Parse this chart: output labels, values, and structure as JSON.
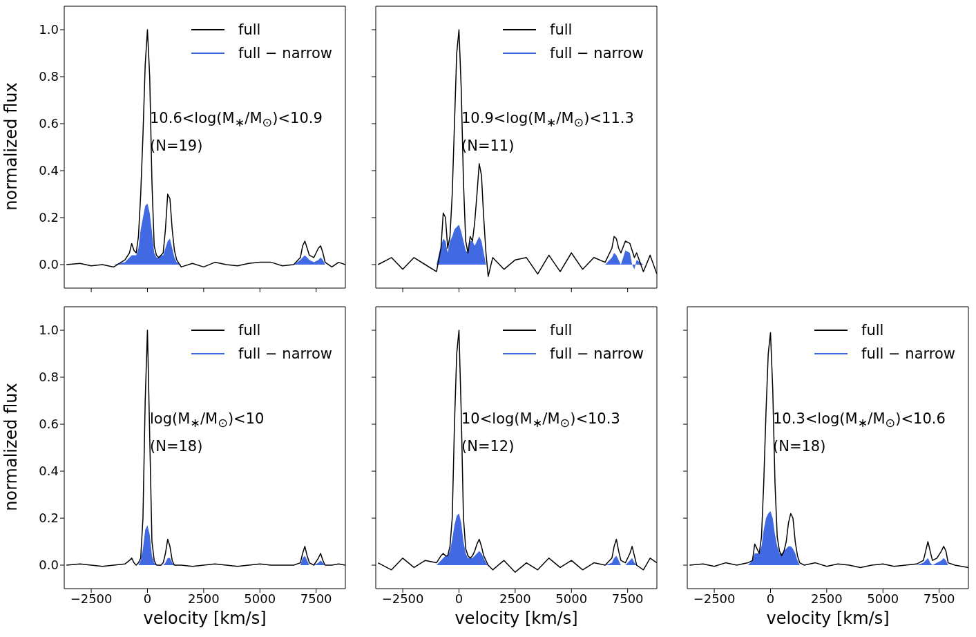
{
  "chart_data": [
    {
      "type": "line",
      "ylabel": "normalized flux",
      "tick_labels": "y",
      "legend": "top right",
      "annotations": [
        "10.6<log(M$_{∗}$/M$_{⊙}$)<10.9",
        "(N=19)"
      ],
      "x": [
        -3600,
        -3000,
        -2500,
        -2000,
        -1500,
        -1000,
        -800,
        -700,
        -600,
        -500,
        -400,
        -300,
        -200,
        -100,
        0,
        100,
        200,
        300,
        400,
        500,
        600,
        700,
        800,
        900,
        1000,
        1100,
        1200,
        1300,
        1500,
        2000,
        2500,
        3000,
        3500,
        4000,
        4500,
        5000,
        5500,
        6000,
        6500,
        6800,
        6900,
        7000,
        7100,
        7200,
        7400,
        7600,
        7700,
        7800,
        7900,
        8200,
        8500,
        8800
      ],
      "xlim": [
        -3700,
        8800
      ],
      "xticks": [
        {
          "value": -2500,
          "label": null
        },
        {
          "value": 0,
          "label": null
        },
        {
          "value": 2500,
          "label": null
        },
        {
          "value": 5000,
          "label": null
        },
        {
          "value": 7500,
          "label": null
        }
      ],
      "ylim": [
        -0.1,
        1.1
      ],
      "yticks": [
        {
          "value": 0,
          "label": "0.0"
        },
        {
          "value": 0.2,
          "label": "0.2"
        },
        {
          "value": 0.4,
          "label": "0.4"
        },
        {
          "value": 0.6,
          "label": "0.6"
        },
        {
          "value": 0.8,
          "label": "0.8"
        },
        {
          "value": 1,
          "label": "1.0"
        }
      ],
      "series": [
        {
          "name": "full",
          "type": "line",
          "color": "#000000",
          "values": [
            0,
            0.005,
            -0.005,
            0,
            -0.01,
            0.02,
            0.05,
            0.09,
            0.06,
            0.05,
            0.12,
            0.3,
            0.55,
            0.85,
            1.0,
            0.8,
            0.35,
            0.08,
            0.04,
            0.03,
            0.04,
            0.05,
            0.15,
            0.3,
            0.28,
            0.15,
            0.06,
            0.02,
            -0.01,
            0.005,
            -0.01,
            0.01,
            0,
            -0.005,
            0.005,
            0.01,
            0.01,
            -0.005,
            0,
            0.03,
            0.08,
            0.1,
            0.07,
            0.04,
            0.03,
            0.07,
            0.08,
            0.05,
            0.01,
            -0.01,
            0.01,
            0
          ]
        },
        {
          "name": "full − narrow",
          "type": "area",
          "color": "#4169e1",
          "values": [
            0,
            0,
            0,
            0,
            0,
            0.01,
            0.03,
            0.04,
            0.04,
            0.04,
            0.07,
            0.15,
            0.2,
            0.25,
            0.26,
            0.22,
            0.14,
            0.05,
            0.03,
            0.03,
            0.04,
            0.04,
            0.07,
            0.1,
            0.11,
            0.07,
            0.03,
            0.01,
            0,
            0,
            0,
            0,
            0,
            0,
            0,
            0,
            0,
            0,
            0,
            0.02,
            0.03,
            0.04,
            0.03,
            0.02,
            0.01,
            0.02,
            0.03,
            0.02,
            0,
            0,
            0,
            0
          ]
        }
      ]
    },
    {
      "type": "line",
      "tick_labels": false,
      "legend": "top right",
      "annotations": [
        "10.9<log(M$_{∗}$/M$_{⊙}$)<11.3",
        "(N=11)"
      ],
      "x": [
        -3600,
        -3000,
        -2500,
        -2000,
        -1500,
        -1000,
        -800,
        -700,
        -600,
        -500,
        -400,
        -300,
        -200,
        -100,
        0,
        100,
        200,
        300,
        400,
        500,
        600,
        700,
        800,
        900,
        1000,
        1100,
        1200,
        1300,
        1500,
        2000,
        2500,
        3000,
        3500,
        4000,
        4500,
        5000,
        5500,
        6000,
        6500,
        6800,
        6900,
        7000,
        7100,
        7200,
        7400,
        7600,
        7700,
        7800,
        7900,
        8200,
        8500,
        8800
      ],
      "xlim": [
        -3700,
        8800
      ],
      "xticks": [
        {
          "value": -2500,
          "label": null
        },
        {
          "value": 0,
          "label": null
        },
        {
          "value": 2500,
          "label": null
        },
        {
          "value": 5000,
          "label": null
        },
        {
          "value": 7500,
          "label": null
        }
      ],
      "ylim": [
        -0.1,
        1.1
      ],
      "yticks": [
        {
          "value": 0,
          "label": null
        },
        {
          "value": 0.2,
          "label": null
        },
        {
          "value": 0.4,
          "label": null
        },
        {
          "value": 0.6,
          "label": null
        },
        {
          "value": 0.8,
          "label": null
        },
        {
          "value": 1,
          "label": null
        }
      ],
      "series": [
        {
          "name": "full",
          "type": "line",
          "color": "#000000",
          "values": [
            0,
            0.03,
            -0.02,
            0.03,
            0,
            -0.03,
            0.07,
            0.22,
            0.2,
            0.07,
            0.12,
            0.3,
            0.6,
            0.9,
            1.0,
            0.75,
            0.35,
            0.1,
            0.05,
            0.12,
            0.1,
            0.18,
            0.3,
            0.43,
            0.38,
            0.2,
            0.05,
            -0.05,
            0.03,
            -0.02,
            0.02,
            0.03,
            -0.04,
            0.04,
            -0.03,
            0.05,
            -0.02,
            0.03,
            0.01,
            0.07,
            0.12,
            0.11,
            0.07,
            0.05,
            0.1,
            0.09,
            0.06,
            0.03,
            0.05,
            -0.03,
            0.04,
            -0.04
          ]
        },
        {
          "name": "full − narrow",
          "type": "area",
          "color": "#4169e1",
          "values": [
            0,
            0,
            0,
            0,
            0,
            0,
            0.08,
            0.11,
            0.1,
            0.05,
            0.1,
            0.12,
            0.15,
            0.16,
            0.17,
            0.14,
            0.1,
            0.06,
            0.05,
            0.1,
            0.1,
            0.08,
            0.1,
            0.12,
            0.1,
            0.05,
            0,
            0,
            0,
            0,
            0,
            0,
            0,
            0,
            0,
            0,
            0,
            0,
            0,
            0.03,
            0.05,
            0.04,
            0.02,
            0,
            0.06,
            0.05,
            0,
            -0.02,
            0.02,
            0,
            0,
            0
          ]
        }
      ]
    },
    {
      "type": "line",
      "xlabel": "velocity [km/s]",
      "ylabel": "normalized flux",
      "legend": "top right",
      "annotations": [
        "log(M$_{∗}$/M$_{⊙}$)<10",
        "(N=18)"
      ],
      "x": [
        -3600,
        -3000,
        -2500,
        -2000,
        -1500,
        -1000,
        -800,
        -700,
        -600,
        -500,
        -400,
        -300,
        -200,
        -100,
        0,
        100,
        200,
        300,
        400,
        500,
        600,
        700,
        800,
        900,
        1000,
        1100,
        1200,
        1300,
        1500,
        2000,
        2500,
        3000,
        3500,
        4000,
        4500,
        5000,
        5500,
        6000,
        6500,
        6800,
        6900,
        7000,
        7100,
        7200,
        7400,
        7600,
        7700,
        7800,
        7900,
        8200,
        8500,
        8800
      ],
      "xlim": [
        -3700,
        8800
      ],
      "xticks": [
        {
          "value": -2500,
          "label": "−2500"
        },
        0,
        2500,
        5000,
        7500
      ],
      "ylim": [
        -0.1,
        1.1
      ],
      "yticks": [
        {
          "value": 0,
          "label": "0.0"
        },
        {
          "value": 0.2,
          "label": "0.2"
        },
        {
          "value": 0.4,
          "label": "0.4"
        },
        {
          "value": 0.6,
          "label": "0.6"
        },
        {
          "value": 0.8,
          "label": "0.8"
        },
        {
          "value": 1,
          "label": "1.0"
        }
      ],
      "series": [
        {
          "name": "full",
          "type": "line",
          "color": "#000000",
          "values": [
            0,
            0.005,
            0,
            -0.005,
            0,
            0.005,
            0.02,
            0.03,
            0.01,
            0,
            0.01,
            0.03,
            0.2,
            0.7,
            1.0,
            0.55,
            0.1,
            0.02,
            0,
            0,
            0,
            0.01,
            0.05,
            0.11,
            0.08,
            0.02,
            0,
            0,
            0,
            -0.005,
            0,
            0.005,
            0,
            -0.005,
            0,
            0.005,
            0,
            0,
            0,
            0.01,
            0.05,
            0.08,
            0.04,
            0.01,
            0,
            0.03,
            0.05,
            0.02,
            0,
            0,
            0.005,
            0
          ]
        },
        {
          "name": "full − narrow",
          "type": "area",
          "color": "#4169e1",
          "values": [
            0,
            0,
            0,
            0,
            0,
            0,
            0,
            0,
            0,
            0,
            0,
            0.02,
            0.07,
            0.15,
            0.17,
            0.13,
            0.04,
            0.01,
            0,
            0,
            0,
            0,
            0.01,
            0.03,
            0.03,
            0.01,
            0,
            0,
            0,
            0,
            0,
            0,
            0,
            0,
            0,
            0,
            0,
            0,
            0,
            0,
            0.03,
            0.04,
            0.02,
            0,
            0,
            0.01,
            0.02,
            0.01,
            0,
            0,
            0,
            0
          ]
        }
      ]
    },
    {
      "type": "line",
      "xlabel": "velocity [km/s]",
      "tick_labels": "x",
      "legend": "top right",
      "annotations": [
        "10<log(M$_{∗}$/M$_{⊙}$)<10.3",
        "(N=12)"
      ],
      "x": [
        -3600,
        -3000,
        -2500,
        -2000,
        -1500,
        -1000,
        -800,
        -700,
        -600,
        -500,
        -400,
        -300,
        -200,
        -100,
        0,
        100,
        200,
        300,
        400,
        500,
        600,
        700,
        800,
        900,
        1000,
        1100,
        1200,
        1300,
        1500,
        2000,
        2500,
        3000,
        3500,
        4000,
        4500,
        5000,
        5500,
        6000,
        6500,
        6800,
        6900,
        7000,
        7100,
        7200,
        7400,
        7600,
        7700,
        7800,
        7900,
        8200,
        8500,
        8800
      ],
      "xlim": [
        -3700,
        8800
      ],
      "xticks": [
        {
          "value": -2500,
          "label": "−2500"
        },
        0,
        2500,
        5000,
        7500
      ],
      "ylim": [
        -0.1,
        1.1
      ],
      "yticks": [
        {
          "value": 0,
          "label": null
        },
        {
          "value": 0.2,
          "label": null
        },
        {
          "value": 0.4,
          "label": null
        },
        {
          "value": 0.6,
          "label": null
        },
        {
          "value": 0.8,
          "label": null
        },
        {
          "value": 1,
          "label": null
        }
      ],
      "series": [
        {
          "name": "full",
          "type": "line",
          "color": "#000000",
          "values": [
            0.01,
            -0.02,
            0.03,
            -0.01,
            0.02,
            0.01,
            0.04,
            0.05,
            0.04,
            0.04,
            0.08,
            0.2,
            0.6,
            0.9,
            1.0,
            0.65,
            0.2,
            0.07,
            0.04,
            0.03,
            0.04,
            0.06,
            0.09,
            0.11,
            0.08,
            0.04,
            0.02,
            0,
            -0.02,
            0.02,
            -0.03,
            0.01,
            -0.02,
            0.03,
            -0.01,
            0.02,
            -0.02,
            0.01,
            0,
            0.03,
            0.08,
            0.11,
            0.06,
            0.02,
            0.01,
            0.05,
            0.08,
            0.04,
            0,
            -0.02,
            0.03,
            0.01
          ]
        },
        {
          "name": "full − narrow",
          "type": "area",
          "color": "#4169e1",
          "values": [
            0,
            0,
            0,
            0,
            0,
            0,
            0.02,
            0.03,
            0.04,
            0.04,
            0.06,
            0.11,
            0.17,
            0.21,
            0.22,
            0.18,
            0.1,
            0.05,
            0.03,
            0.03,
            0.03,
            0.04,
            0.05,
            0.06,
            0.05,
            0.03,
            0.01,
            0,
            0,
            0,
            0,
            0,
            0,
            0,
            0,
            0,
            0,
            0,
            0,
            0.01,
            0.03,
            0.04,
            0.02,
            0,
            0,
            0.02,
            0.03,
            0.01,
            0,
            0,
            0,
            0
          ]
        }
      ]
    },
    {
      "type": "line",
      "xlabel": "velocity [km/s]",
      "tick_labels": "x",
      "legend": "top right",
      "annotations": [
        "10.3<log(M$_{∗}$/M$_{⊙}$)<10.6",
        "(N=18)"
      ],
      "x": [
        -3600,
        -3000,
        -2500,
        -2000,
        -1500,
        -1000,
        -800,
        -700,
        -600,
        -500,
        -400,
        -300,
        -200,
        -100,
        0,
        100,
        200,
        300,
        400,
        500,
        600,
        700,
        800,
        900,
        1000,
        1100,
        1200,
        1300,
        1500,
        2000,
        2500,
        3000,
        3500,
        4000,
        4500,
        5000,
        5500,
        6000,
        6500,
        6800,
        6900,
        7000,
        7100,
        7200,
        7400,
        7600,
        7700,
        7800,
        7900,
        8200,
        8500,
        8800
      ],
      "xlim": [
        -3700,
        8800
      ],
      "xticks": [
        {
          "value": -2500,
          "label": "−2500"
        },
        0,
        2500,
        5000,
        7500
      ],
      "ylim": [
        -0.1,
        1.1
      ],
      "yticks": [
        {
          "value": 0,
          "label": null
        },
        {
          "value": 0.2,
          "label": null
        },
        {
          "value": 0.4,
          "label": null
        },
        {
          "value": 0.6,
          "label": null
        },
        {
          "value": 0.8,
          "label": null
        },
        {
          "value": 1,
          "label": null
        }
      ],
      "series": [
        {
          "name": "full",
          "type": "line",
          "color": "#000000",
          "values": [
            0,
            0.005,
            -0.005,
            0.01,
            0,
            0.01,
            0.02,
            0.09,
            0.07,
            0.05,
            0.12,
            0.35,
            0.65,
            0.9,
            0.99,
            0.75,
            0.35,
            0.12,
            0.06,
            0.04,
            0.06,
            0.1,
            0.18,
            0.22,
            0.2,
            0.1,
            0.04,
            0.01,
            0,
            0.01,
            -0.005,
            0.005,
            0,
            -0.01,
            0,
            0.005,
            -0.005,
            0,
            0.005,
            0.02,
            0.06,
            0.1,
            0.06,
            0.02,
            0.03,
            0.06,
            0.08,
            0.06,
            0.01,
            0,
            -0.005,
            -0.01
          ]
        },
        {
          "name": "full − narrow",
          "type": "area",
          "color": "#4169e1",
          "values": [
            0,
            0,
            0,
            0,
            0,
            0,
            0.02,
            0.05,
            0.05,
            0.05,
            0.08,
            0.15,
            0.2,
            0.22,
            0.23,
            0.2,
            0.13,
            0.08,
            0.05,
            0.05,
            0.06,
            0.07,
            0.08,
            0.08,
            0.07,
            0.05,
            0.02,
            0,
            0,
            0,
            0,
            0,
            0,
            0,
            0,
            0,
            0,
            0,
            0,
            0.01,
            0.02,
            0.03,
            0.01,
            0,
            0.01,
            0.02,
            0.03,
            0.02,
            0,
            0,
            0,
            0
          ]
        }
      ]
    }
  ]
}
